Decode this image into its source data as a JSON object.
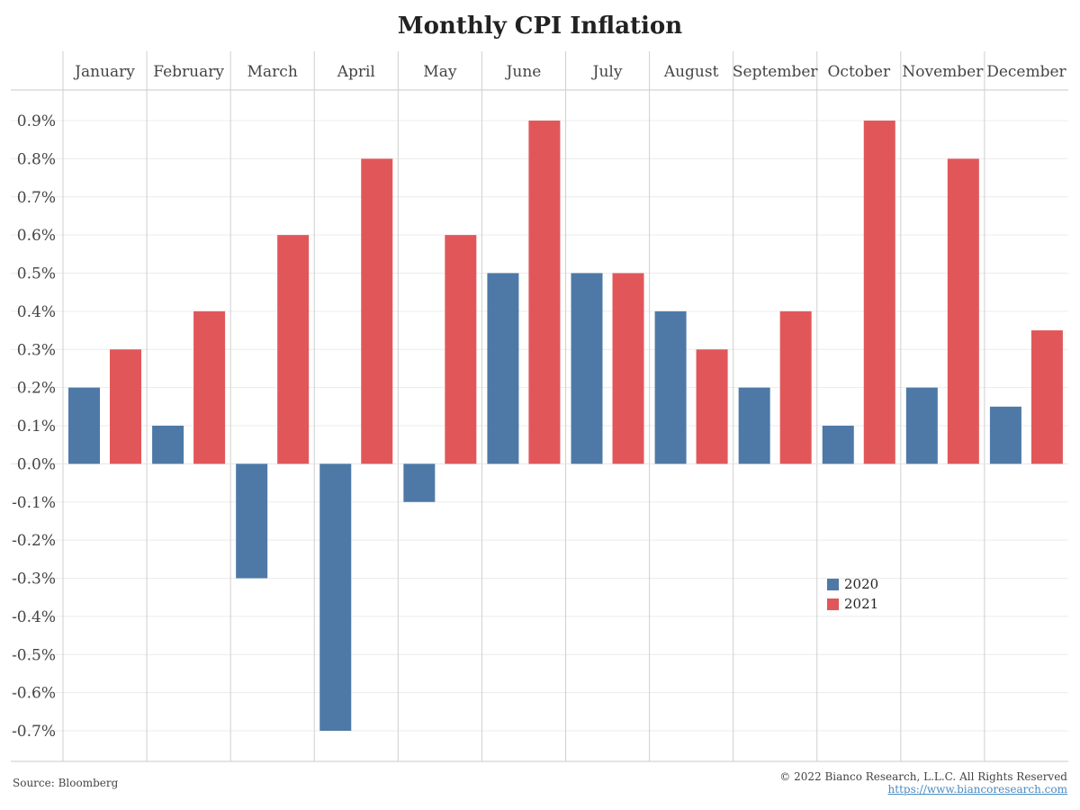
{
  "chart_data": {
    "type": "bar",
    "title": "Monthly CPI Inflation",
    "categories": [
      "January",
      "February",
      "March",
      "April",
      "May",
      "June",
      "July",
      "August",
      "September",
      "October",
      "November",
      "December"
    ],
    "series": [
      {
        "name": "2020",
        "color": "#4e79a7",
        "values": [
          0.2,
          0.1,
          -0.3,
          -0.7,
          -0.1,
          0.5,
          0.5,
          0.4,
          0.2,
          0.1,
          0.2,
          0.15
        ]
      },
      {
        "name": "2021",
        "color": "#e15759",
        "values": [
          0.3,
          0.4,
          0.6,
          0.8,
          0.6,
          0.9,
          0.5,
          0.3,
          0.4,
          0.9,
          0.8,
          0.35
        ]
      }
    ],
    "ylim": [
      -0.7,
      0.9
    ],
    "yticks": [
      0.9,
      0.8,
      0.7,
      0.6,
      0.5,
      0.4,
      0.3,
      0.2,
      0.1,
      0.0,
      -0.1,
      -0.2,
      -0.3,
      -0.4,
      -0.5,
      -0.6,
      -0.7
    ],
    "ytick_labels": [
      "0.9%",
      "0.8%",
      "0.7%",
      "0.6%",
      "0.5%",
      "0.4%",
      "0.3%",
      "0.2%",
      "0.1%",
      "0.0%",
      "-0.1%",
      "-0.2%",
      "-0.3%",
      "-0.4%",
      "-0.5%",
      "-0.6%",
      "-0.7%"
    ],
    "xlabel": "",
    "ylabel": "",
    "grid": true,
    "legend_position": "lower-right"
  },
  "footer": {
    "source": "Source: Bloomberg",
    "copyright": "© 2022 Bianco Research, L.L.C. All Rights Reserved",
    "url": "https://www.biancoresearch.com"
  }
}
